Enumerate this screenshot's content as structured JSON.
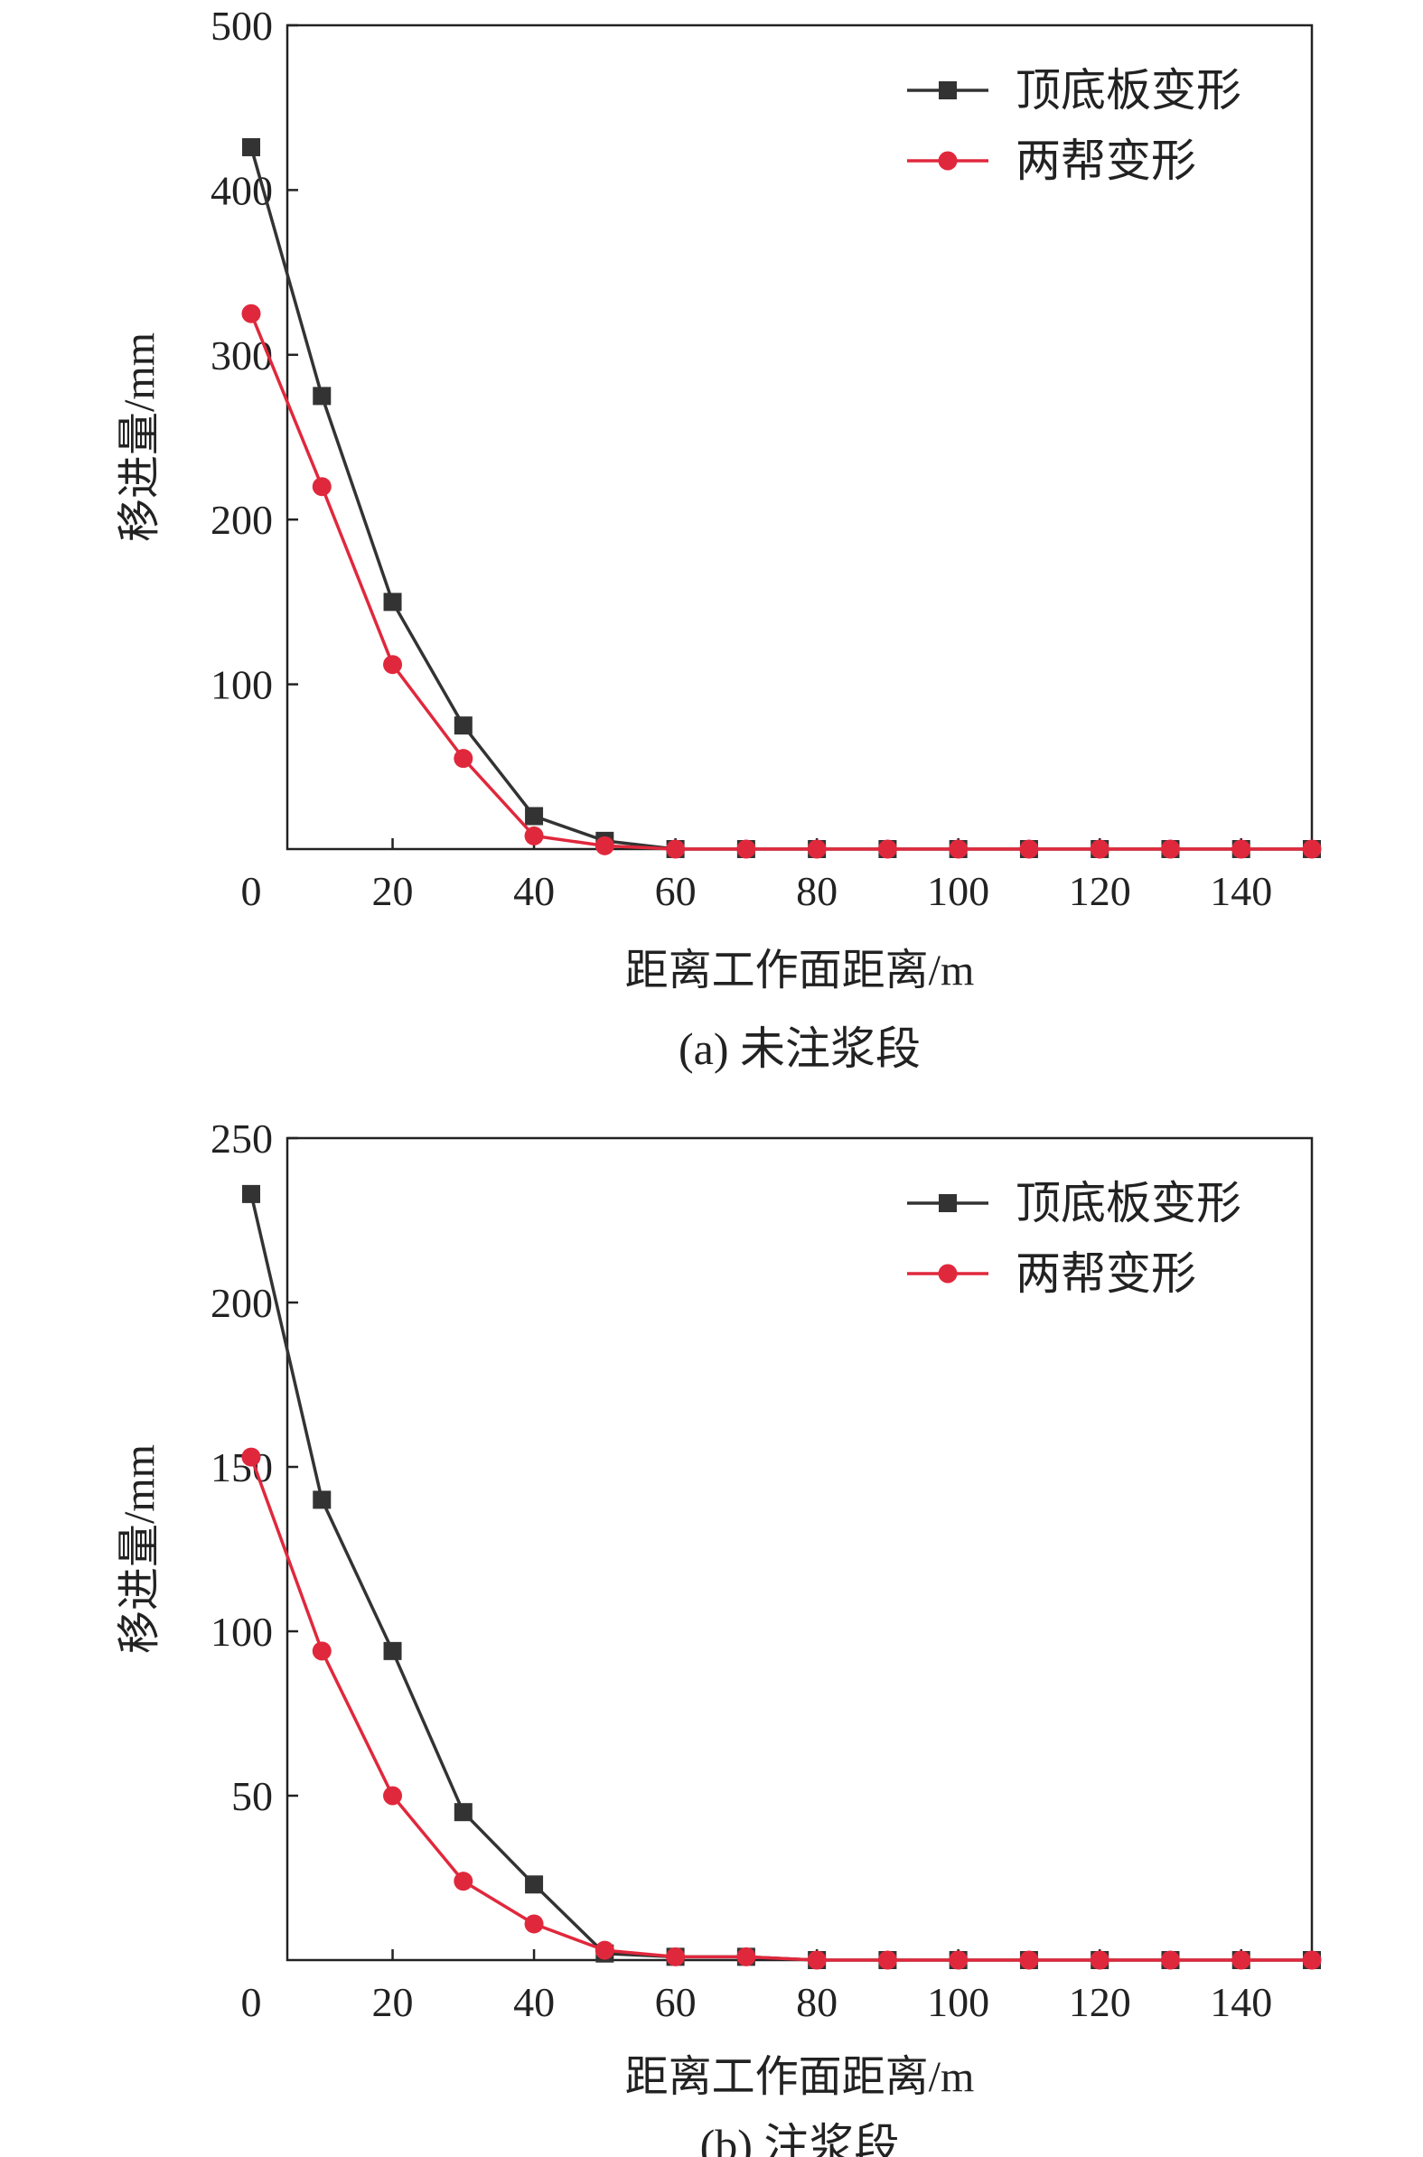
{
  "chart_data": [
    {
      "type": "line",
      "caption": "(a) 未注浆段",
      "xlabel": "距离工作面距离/m",
      "ylabel": "移进量/mm",
      "xlim": [
        0,
        150
      ],
      "ylim": [
        0,
        500
      ],
      "x_ticks": [
        "0",
        "20",
        "40",
        "60",
        "80",
        "100",
        "120",
        "140"
      ],
      "y_ticks": [
        "100",
        "200",
        "300",
        "400",
        "500"
      ],
      "legend_position": "top-right",
      "x": [
        0,
        10,
        20,
        30,
        40,
        50,
        60,
        70,
        80,
        90,
        100,
        110,
        120,
        130,
        140,
        150
      ],
      "series": [
        {
          "name": "顶底板变形",
          "color": "#333333",
          "marker": "square",
          "values": [
            426,
            275,
            150,
            75,
            20,
            5,
            0,
            0,
            0,
            0,
            0,
            0,
            0,
            0,
            0,
            0
          ]
        },
        {
          "name": "两帮变形",
          "color": "#e0283c",
          "marker": "circle",
          "values": [
            325,
            220,
            112,
            55,
            8,
            2,
            0,
            0,
            0,
            0,
            0,
            0,
            0,
            0,
            0,
            0
          ]
        }
      ]
    },
    {
      "type": "line",
      "caption": "(b) 注浆段",
      "xlabel": "距离工作面距离/m",
      "ylabel": "移进量/mm",
      "xlim": [
        0,
        150
      ],
      "ylim": [
        0,
        250
      ],
      "x_ticks": [
        "0",
        "20",
        "40",
        "60",
        "80",
        "100",
        "120",
        "140"
      ],
      "y_ticks": [
        "50",
        "100",
        "150",
        "200",
        "250"
      ],
      "legend_position": "top-right",
      "x": [
        0,
        10,
        20,
        30,
        40,
        50,
        60,
        70,
        80,
        90,
        100,
        110,
        120,
        130,
        140,
        150
      ],
      "series": [
        {
          "name": "顶底板变形",
          "color": "#333333",
          "marker": "square",
          "values": [
            233,
            140,
            94,
            45,
            23,
            2,
            1,
            1,
            0,
            0,
            0,
            0,
            0,
            0,
            0,
            0
          ]
        },
        {
          "name": "两帮变形",
          "color": "#e0283c",
          "marker": "circle",
          "values": [
            153,
            94,
            50,
            24,
            11,
            3,
            1,
            1,
            0,
            0,
            0,
            0,
            0,
            0,
            0,
            0
          ]
        }
      ]
    }
  ]
}
